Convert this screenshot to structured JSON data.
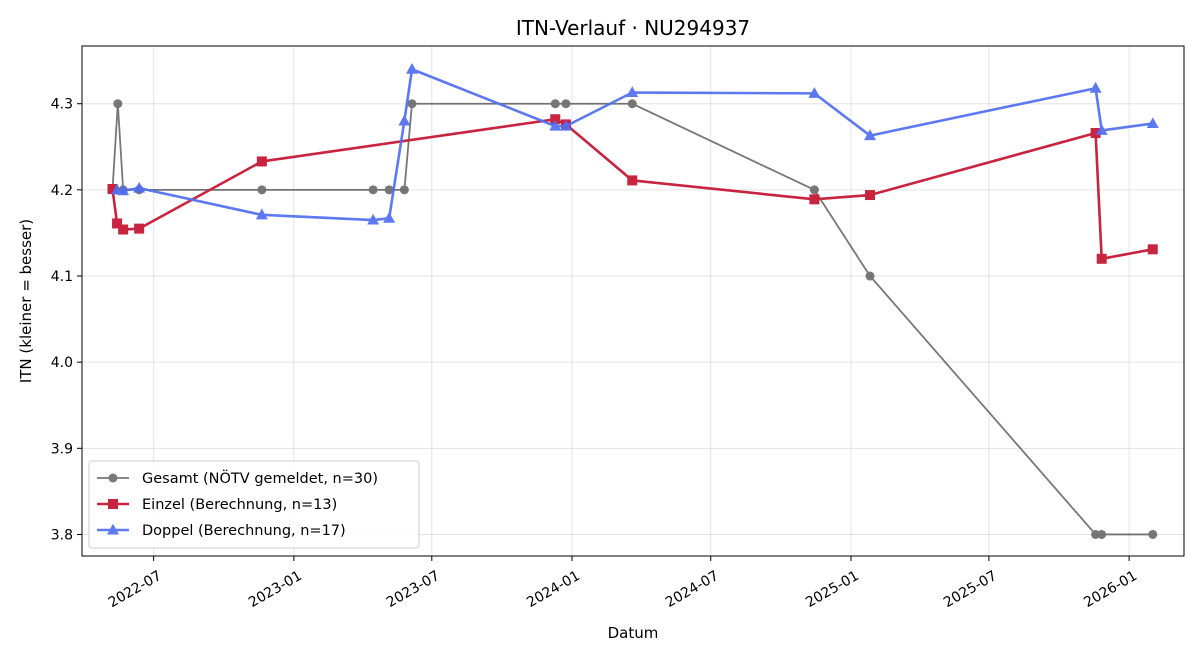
{
  "chart_data": {
    "type": "line",
    "title": "ITN-Verlauf · NU294937",
    "xlabel": "Datum",
    "ylabel": "ITN  (kleiner = besser)",
    "xlim": [
      "2022-03-29",
      "2026-03-14"
    ],
    "ylim": [
      3.775,
      4.367
    ],
    "x_ticks": [
      "2022-07",
      "2023-01",
      "2023-07",
      "2024-01",
      "2024-07",
      "2025-01",
      "2025-07",
      "2026-01"
    ],
    "y_ticks": [
      "3.8",
      "3.9",
      "4.0",
      "4.1",
      "4.2",
      "4.3"
    ],
    "grid": true,
    "legend_position": "lower-left",
    "series": [
      {
        "name": "Gesamt (NÖTV gemeldet, n=30)",
        "color": "#444444",
        "marker": "circle",
        "points": [
          {
            "x": "2022-05-08",
            "y": 4.2
          },
          {
            "x": "2022-05-15",
            "y": 4.3
          },
          {
            "x": "2022-05-22",
            "y": 4.2
          },
          {
            "x": "2022-06-12",
            "y": 4.2
          },
          {
            "x": "2022-11-20",
            "y": 4.2
          },
          {
            "x": "2023-04-15",
            "y": 4.2
          },
          {
            "x": "2023-05-06",
            "y": 4.2
          },
          {
            "x": "2023-05-26",
            "y": 4.2
          },
          {
            "x": "2023-06-05",
            "y": 4.3
          },
          {
            "x": "2023-12-10",
            "y": 4.3
          },
          {
            "x": "2023-12-24",
            "y": 4.3
          },
          {
            "x": "2024-03-20",
            "y": 4.3
          },
          {
            "x": "2024-11-14",
            "y": 4.2
          },
          {
            "x": "2025-01-26",
            "y": 4.1
          },
          {
            "x": "2025-11-18",
            "y": 3.8
          },
          {
            "x": "2025-11-26",
            "y": 3.8
          },
          {
            "x": "2026-02-01",
            "y": 3.8
          }
        ]
      },
      {
        "name": "Einzel (Berechnung, n=13)",
        "color": "#c8233f",
        "marker": "square",
        "points": [
          {
            "x": "2022-05-08",
            "y": 4.201
          },
          {
            "x": "2022-05-14",
            "y": 4.161
          },
          {
            "x": "2022-05-22",
            "y": 4.154
          },
          {
            "x": "2022-06-12",
            "y": 4.155
          },
          {
            "x": "2022-11-20",
            "y": 4.233
          },
          {
            "x": "2023-12-10",
            "y": 4.282
          },
          {
            "x": "2023-12-24",
            "y": 4.276
          },
          {
            "x": "2024-03-20",
            "y": 4.211
          },
          {
            "x": "2024-11-14",
            "y": 4.189
          },
          {
            "x": "2025-01-26",
            "y": 4.194
          },
          {
            "x": "2025-11-18",
            "y": 4.266
          },
          {
            "x": "2025-11-26",
            "y": 4.12
          },
          {
            "x": "2026-02-01",
            "y": 4.131
          }
        ]
      },
      {
        "name": "Doppel (Berechnung, n=17)",
        "color": "#4f6ef0",
        "marker": "triangle",
        "points": [
          {
            "x": "2022-05-14",
            "y": 4.2
          },
          {
            "x": "2022-05-22",
            "y": 4.199
          },
          {
            "x": "2022-06-12",
            "y": 4.202
          },
          {
            "x": "2022-11-20",
            "y": 4.171
          },
          {
            "x": "2023-04-15",
            "y": 4.165
          },
          {
            "x": "2023-05-06",
            "y": 4.167
          },
          {
            "x": "2023-05-26",
            "y": 4.28
          },
          {
            "x": "2023-06-05",
            "y": 4.34
          },
          {
            "x": "2023-12-10",
            "y": 4.274
          },
          {
            "x": "2023-12-24",
            "y": 4.274
          },
          {
            "x": "2024-03-20",
            "y": 4.313
          },
          {
            "x": "2024-11-14",
            "y": 4.312
          },
          {
            "x": "2025-01-26",
            "y": 4.263
          },
          {
            "x": "2025-11-18",
            "y": 4.318
          },
          {
            "x": "2025-11-26",
            "y": 4.269
          },
          {
            "x": "2026-02-01",
            "y": 4.277
          }
        ]
      }
    ]
  }
}
